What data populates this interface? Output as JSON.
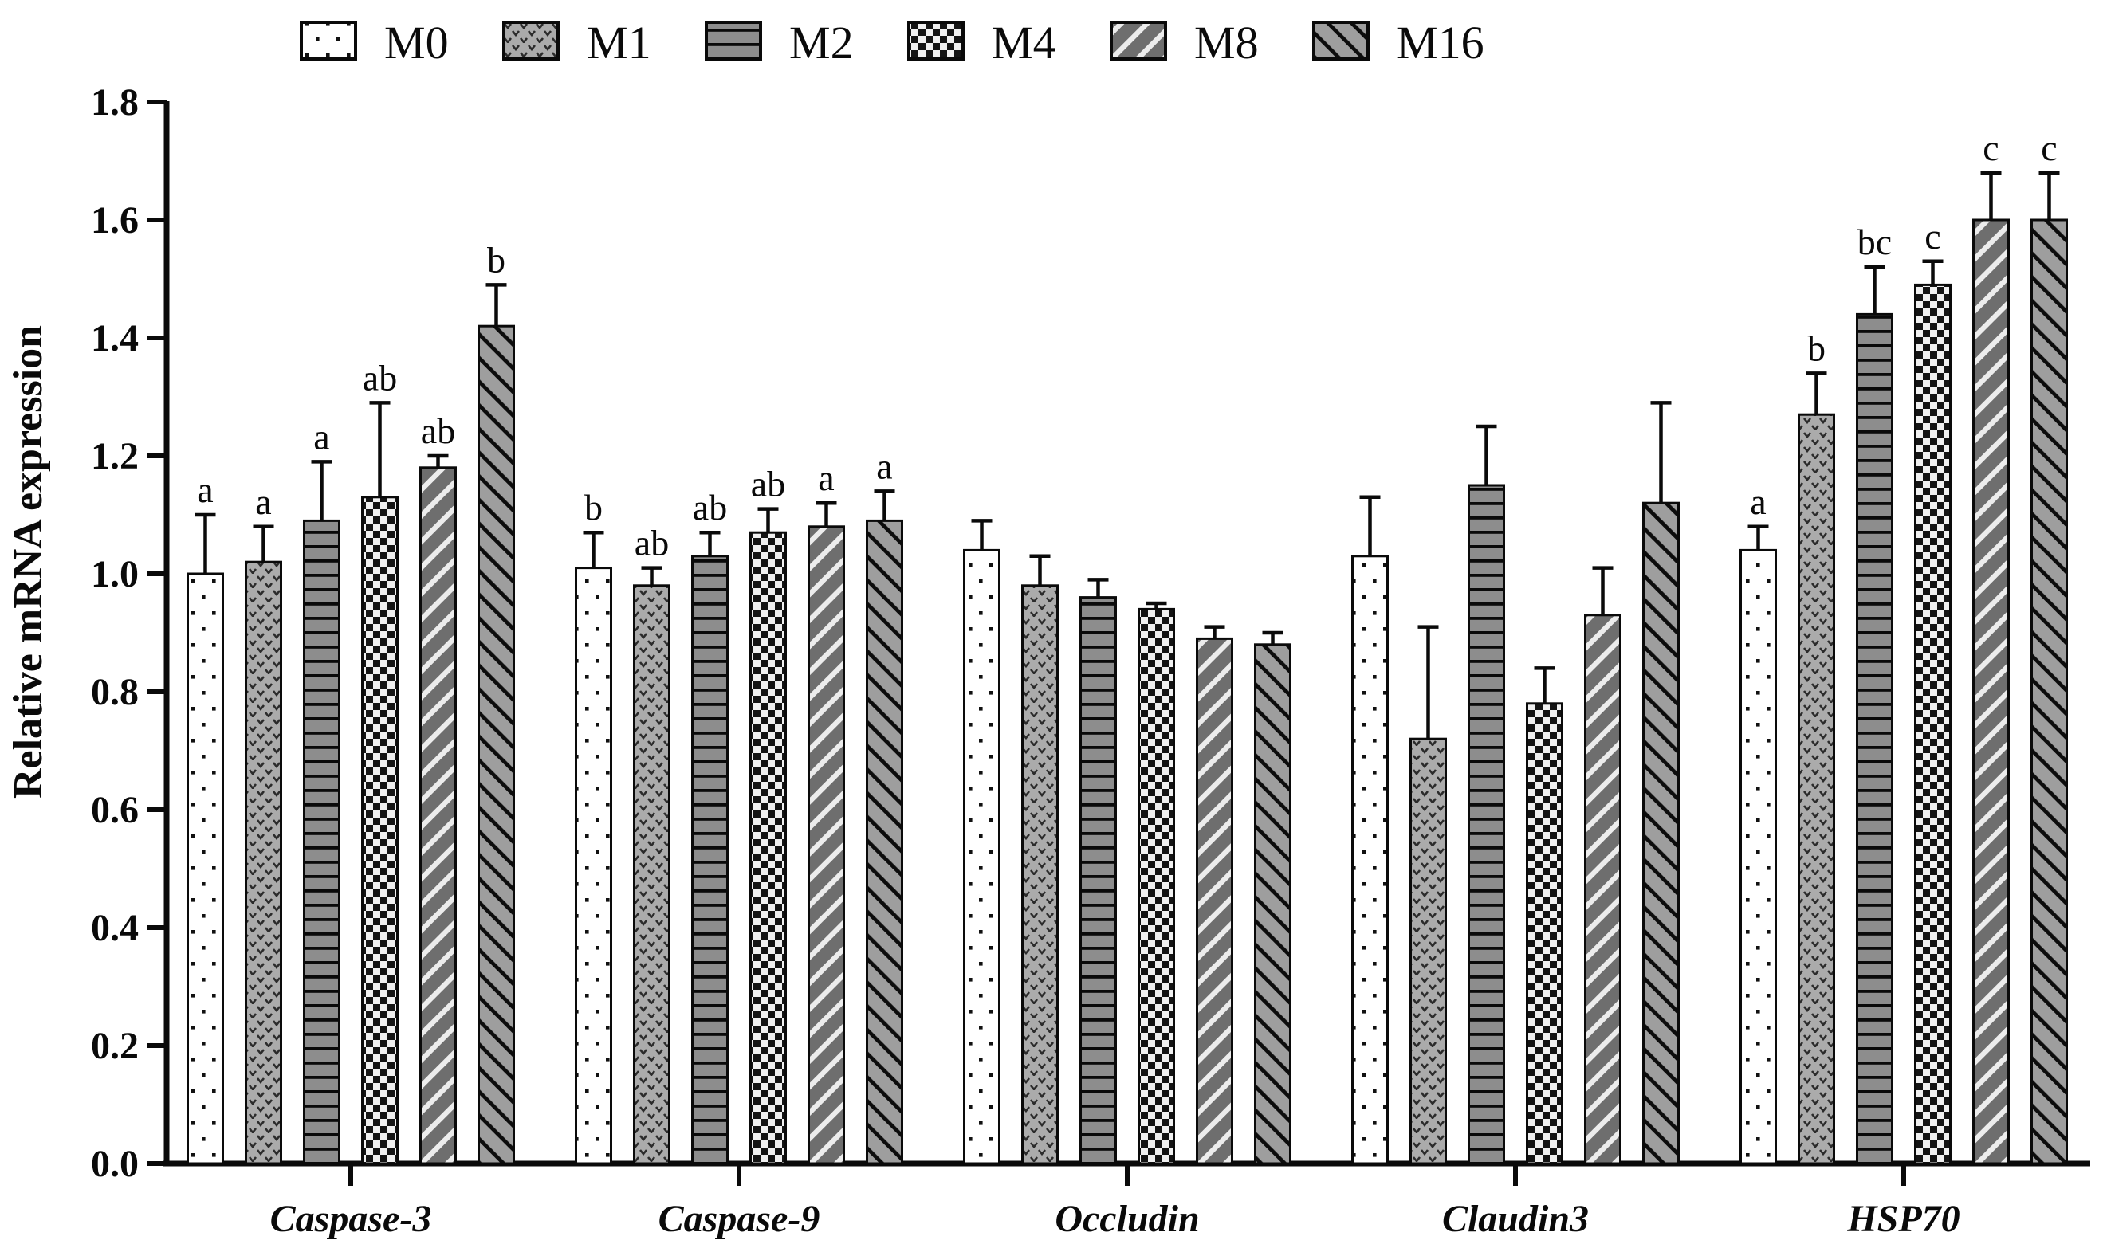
{
  "chart_data": {
    "type": "bar",
    "title": "",
    "xlabel": "",
    "ylabel": "Relative mRNA expression",
    "ylim": [
      0.0,
      1.8
    ],
    "ytick_step": 0.2,
    "ytick_labels": [
      "0.0",
      "0.2",
      "0.4",
      "0.6",
      "0.8",
      "1.0",
      "1.2",
      "1.4",
      "1.6",
      "1.8"
    ],
    "grid": false,
    "legend_position": "top",
    "error_bars": "upper-only",
    "categories": [
      "Caspase-3",
      "Caspase-9",
      "Occludin",
      "Claudin3",
      "HSP70"
    ],
    "legend": [
      "M0",
      "M1",
      "M2",
      "M4",
      "M8",
      "M16"
    ],
    "series": [
      {
        "name": "M0",
        "pattern": "dots",
        "values": [
          1.0,
          1.01,
          1.04,
          1.03,
          1.04
        ],
        "errors": [
          0.1,
          0.06,
          0.05,
          0.1,
          0.04
        ],
        "letters": [
          "a",
          "b",
          "",
          "",
          "a"
        ]
      },
      {
        "name": "M1",
        "pattern": "chevrons",
        "values": [
          1.02,
          0.98,
          0.98,
          0.72,
          1.27
        ],
        "errors": [
          0.06,
          0.03,
          0.05,
          0.19,
          0.07
        ],
        "letters": [
          "a",
          "ab",
          "",
          "",
          "b"
        ]
      },
      {
        "name": "M2",
        "pattern": "hlines",
        "values": [
          1.09,
          1.03,
          0.96,
          1.15,
          1.44
        ],
        "errors": [
          0.1,
          0.04,
          0.03,
          0.1,
          0.08
        ],
        "letters": [
          "a",
          "ab",
          "",
          "",
          "bc"
        ]
      },
      {
        "name": "M4",
        "pattern": "checker",
        "values": [
          1.13,
          1.07,
          0.94,
          0.78,
          1.49
        ],
        "errors": [
          0.16,
          0.04,
          0.01,
          0.06,
          0.04
        ],
        "letters": [
          "ab",
          "ab",
          "",
          "",
          "c"
        ]
      },
      {
        "name": "M8",
        "pattern": "diag-up",
        "values": [
          1.18,
          1.08,
          0.89,
          0.93,
          1.6
        ],
        "errors": [
          0.02,
          0.04,
          0.02,
          0.08,
          0.08
        ],
        "letters": [
          "ab",
          "a",
          "",
          "",
          "c"
        ]
      },
      {
        "name": "M16",
        "pattern": "diag-down",
        "values": [
          1.42,
          1.09,
          0.88,
          1.12,
          1.6
        ],
        "errors": [
          0.07,
          0.05,
          0.02,
          0.17,
          0.08
        ],
        "letters": [
          "b",
          "a",
          "",
          "",
          "c"
        ]
      }
    ],
    "colors": {
      "axis": "#0a0a0a",
      "bar_stroke": "#0a0a0a",
      "dots_bg": "#ffffff",
      "dots_fg": "#111111",
      "chevrons_bg": "#ababab",
      "chevrons_fg": "#2b2b2b",
      "hlines_bg": "#8d8d8d",
      "hlines_fg": "#0a0a0a",
      "checker_bg": "#f0f0f0",
      "checker_fg": "#141414",
      "diag_up_bg": "#6e6e6e",
      "diag_up_fg": "#ececec",
      "diag_down_bg": "#9e9e9e",
      "diag_down_fg": "#0c0c0c"
    }
  }
}
